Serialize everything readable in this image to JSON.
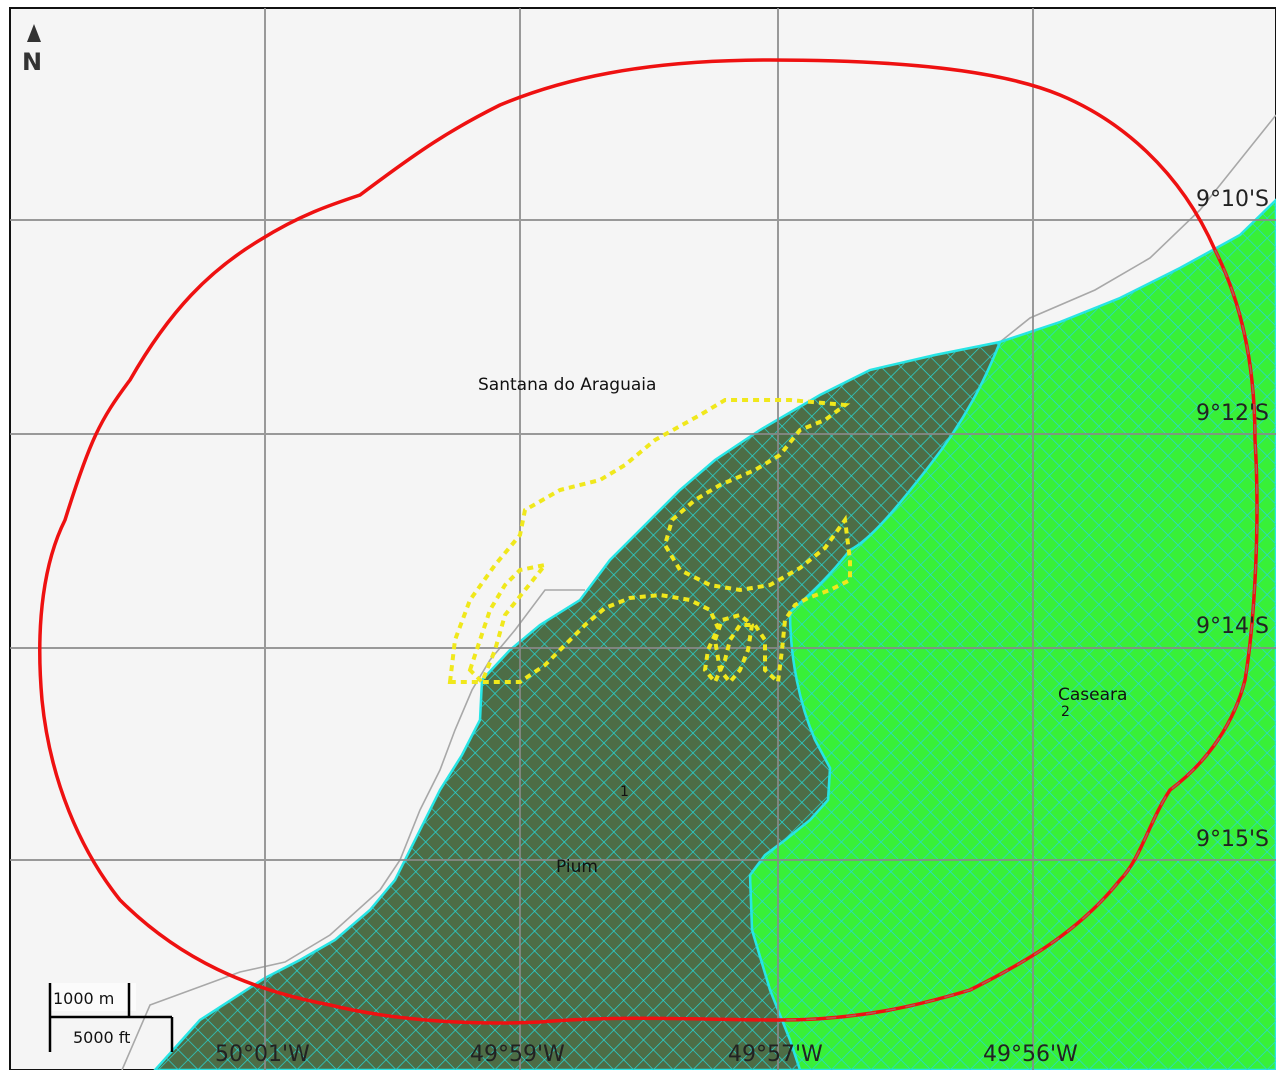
{
  "north_arrow": {
    "label": "N",
    "icon": "north-arrow-icon"
  },
  "graticule": {
    "latitudes": [
      "9°10'S",
      "9°12'S",
      "9°14'S",
      "9°15'S"
    ],
    "longitudes": [
      "50°01'W",
      "49°59'W",
      "49°57'W",
      "49°56'W"
    ]
  },
  "places": {
    "santana": "Santana do Araguaia",
    "caseara": "Caseara",
    "pium": "Pium"
  },
  "region_numbers": {
    "region1": "1",
    "region2": "2"
  },
  "scale_bar": {
    "metric": "1000 m",
    "imperial": "5000 ft"
  },
  "colors": {
    "background": "#f5f5f5",
    "grid": "#8a8a8a",
    "buffer_ring": "#ee1111",
    "dark_region": "#4d6d46",
    "green_region": "#38f038",
    "hatch": "#27d7d7",
    "yellow_outline": "#f0e81c",
    "road": "#a8a8a8"
  }
}
